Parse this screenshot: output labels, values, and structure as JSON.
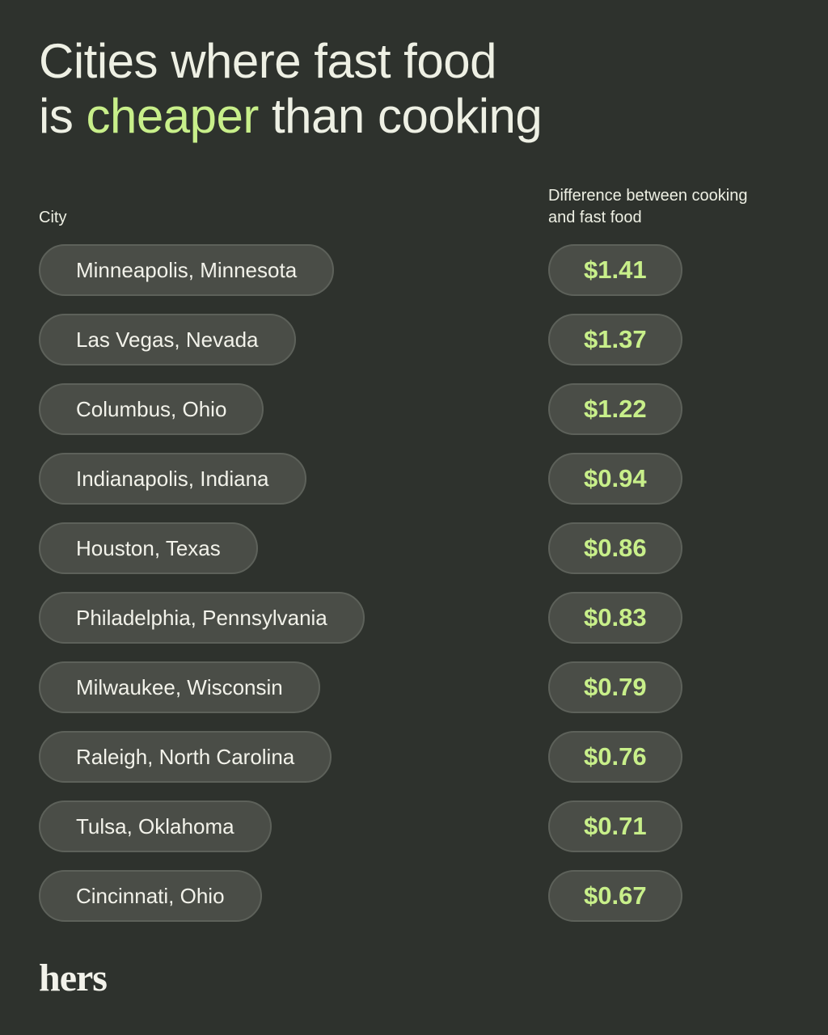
{
  "header": {
    "title_line1": "Cities where fast food",
    "title_line2_start": "is",
    "title_highlight": "cheaper",
    "title_line2_end": "than cooking"
  },
  "table": {
    "columns": [
      "City",
      "Difference between cooking and fast food"
    ],
    "rows": [
      [
        "Minneapolis, Minnesota",
        "$1.41"
      ],
      [
        "Las Vegas, Nevada",
        "$1.37"
      ],
      [
        "Columbus, Ohio",
        "$1.22"
      ],
      [
        "Indianapolis, Indiana",
        "$0.94"
      ],
      [
        "Houston, Texas",
        "$0.86"
      ],
      [
        "Philadelphia, Pennsylvania",
        "$0.83"
      ],
      [
        "Milwaukee, Wisconsin",
        "$0.79"
      ],
      [
        "Raleigh, North Carolina",
        "$0.76"
      ],
      [
        "Tulsa, Oklahoma",
        "$0.71"
      ],
      [
        "Cincinnati, Ohio",
        "$0.67"
      ]
    ]
  },
  "footer": {
    "logo": "hers"
  }
}
